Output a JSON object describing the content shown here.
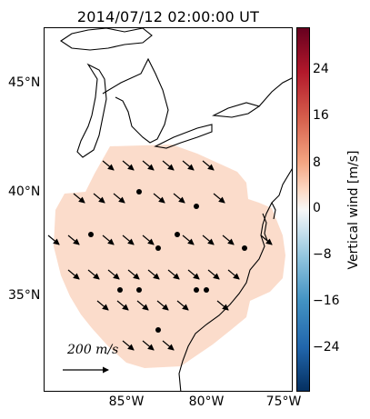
{
  "title": "2014/07/12 02:00:00 UT",
  "lat_labels": [
    "45°N",
    "40°N",
    "35°N"
  ],
  "lon_labels": [
    "85°W",
    "80°W",
    "75°W"
  ],
  "colorbar": {
    "label": "Vertical wind [m/s]",
    "ticks": [
      "24",
      "16",
      "8",
      "0",
      "−8",
      "−16",
      "−24"
    ],
    "colors": [
      "#67001f",
      "#b2182b",
      "#d6604d",
      "#f4a582",
      "#fddbc7",
      "#f7f7f7",
      "#d1e5f0",
      "#92c5de",
      "#4393c3",
      "#2166ac",
      "#053061"
    ]
  },
  "scale": {
    "label": "200 m/s"
  },
  "colors": {
    "field_fill": "#fbdccb",
    "coast": "#000000"
  },
  "icons": {
    "wind_vector": "arrow-southeast-icon",
    "station": "station-dot-icon"
  }
}
